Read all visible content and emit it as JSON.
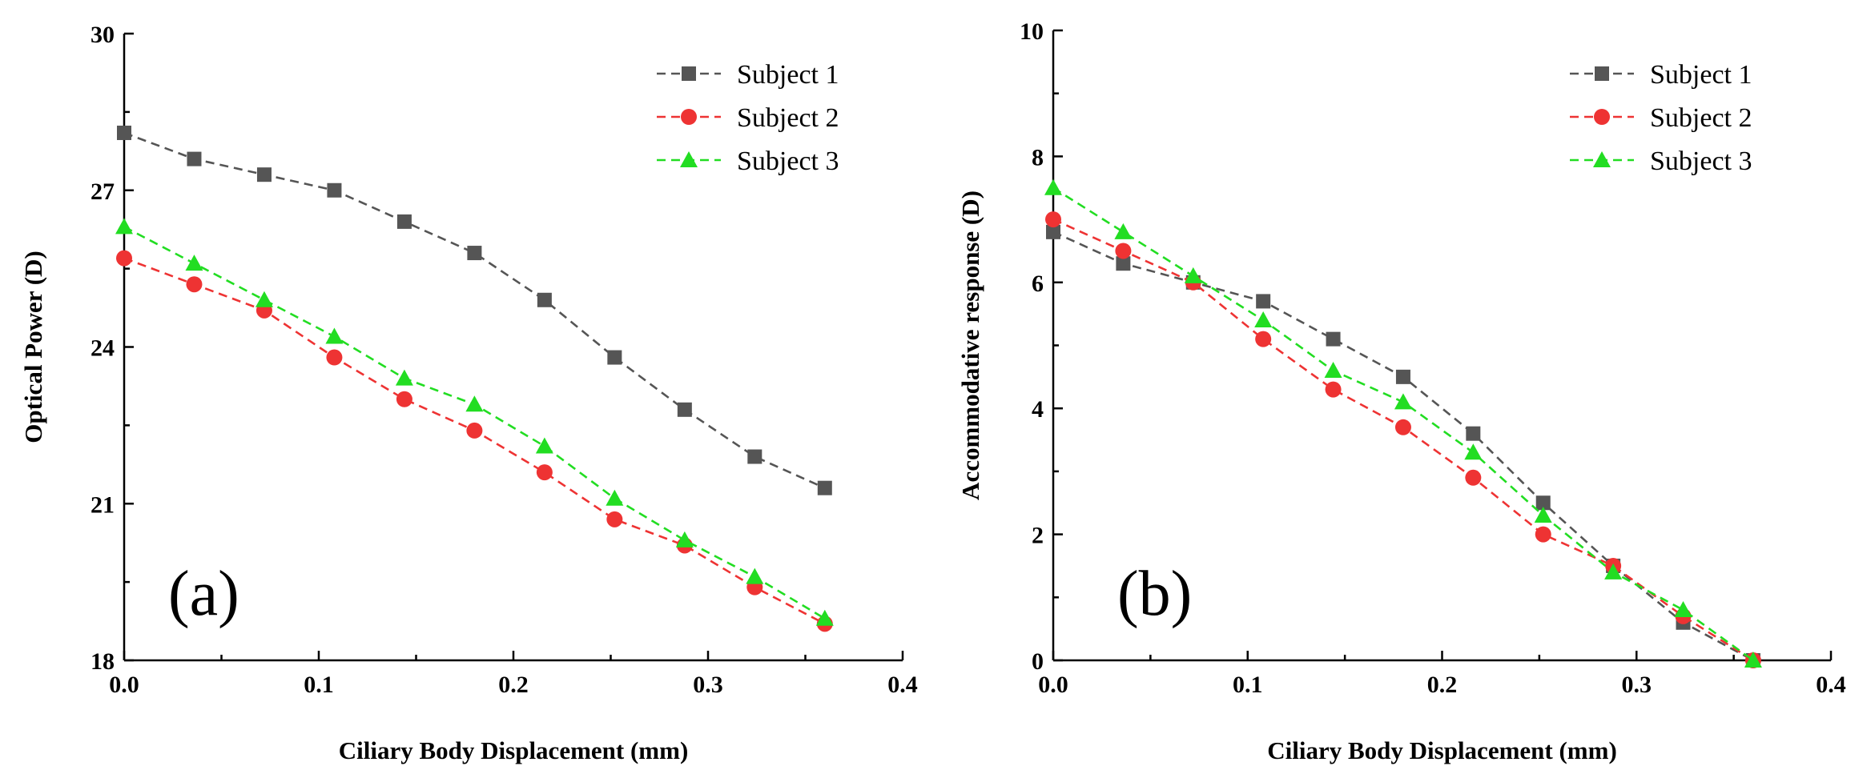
{
  "chart_data": [
    {
      "panel": "(a)",
      "type": "line",
      "xlabel": "Ciliary Body Displacement (mm)",
      "ylabel": "Optical Power (D)",
      "xlim": [
        0.0,
        0.4
      ],
      "ylim": [
        18,
        30
      ],
      "x_ticks": [
        "0.0",
        "0.1",
        "0.2",
        "0.3",
        "0.4"
      ],
      "y_ticks": [
        "18",
        "21",
        "24",
        "27",
        "30"
      ],
      "legend_position": "top-right",
      "x": [
        0.0,
        0.036,
        0.072,
        0.108,
        0.144,
        0.18,
        0.216,
        0.252,
        0.288,
        0.324,
        0.36
      ],
      "series": [
        {
          "name": "Subject 1",
          "color": "#555555",
          "marker": "square",
          "values": [
            28.1,
            27.6,
            27.3,
            27.0,
            26.4,
            25.8,
            24.9,
            23.8,
            22.8,
            21.9,
            21.3
          ]
        },
        {
          "name": "Subject 2",
          "color": "#ee3333",
          "marker": "circle",
          "values": [
            25.7,
            25.2,
            24.7,
            23.8,
            23.0,
            22.4,
            21.6,
            20.7,
            20.2,
            19.4,
            18.7
          ]
        },
        {
          "name": "Subject 3",
          "color": "#22dd22",
          "marker": "triangle",
          "values": [
            26.3,
            25.6,
            24.9,
            24.2,
            23.4,
            22.9,
            22.1,
            21.1,
            20.3,
            19.6,
            18.8
          ]
        }
      ]
    },
    {
      "panel": "(b)",
      "type": "line",
      "xlabel": "Ciliary Body Displacement (mm)",
      "ylabel": "Accommodative response (D)",
      "xlim": [
        0.0,
        0.4
      ],
      "ylim": [
        0,
        10
      ],
      "x_ticks": [
        "0.0",
        "0.1",
        "0.2",
        "0.3",
        "0.4"
      ],
      "y_ticks": [
        "0",
        "2",
        "4",
        "6",
        "8",
        "10"
      ],
      "legend_position": "top-right",
      "x": [
        0.0,
        0.036,
        0.072,
        0.108,
        0.144,
        0.18,
        0.216,
        0.252,
        0.288,
        0.324,
        0.36
      ],
      "series": [
        {
          "name": "Subject 1",
          "color": "#555555",
          "marker": "square",
          "values": [
            6.8,
            6.3,
            6.0,
            5.7,
            5.1,
            4.5,
            3.6,
            2.5,
            1.5,
            0.6,
            0.0
          ]
        },
        {
          "name": "Subject 2",
          "color": "#ee3333",
          "marker": "circle",
          "values": [
            7.0,
            6.5,
            6.0,
            5.1,
            4.3,
            3.7,
            2.9,
            2.0,
            1.5,
            0.7,
            0.0
          ]
        },
        {
          "name": "Subject 3",
          "color": "#22dd22",
          "marker": "triangle",
          "values": [
            7.5,
            6.8,
            6.1,
            5.4,
            4.6,
            4.1,
            3.3,
            2.3,
            1.4,
            0.8,
            0.0
          ]
        }
      ]
    }
  ]
}
